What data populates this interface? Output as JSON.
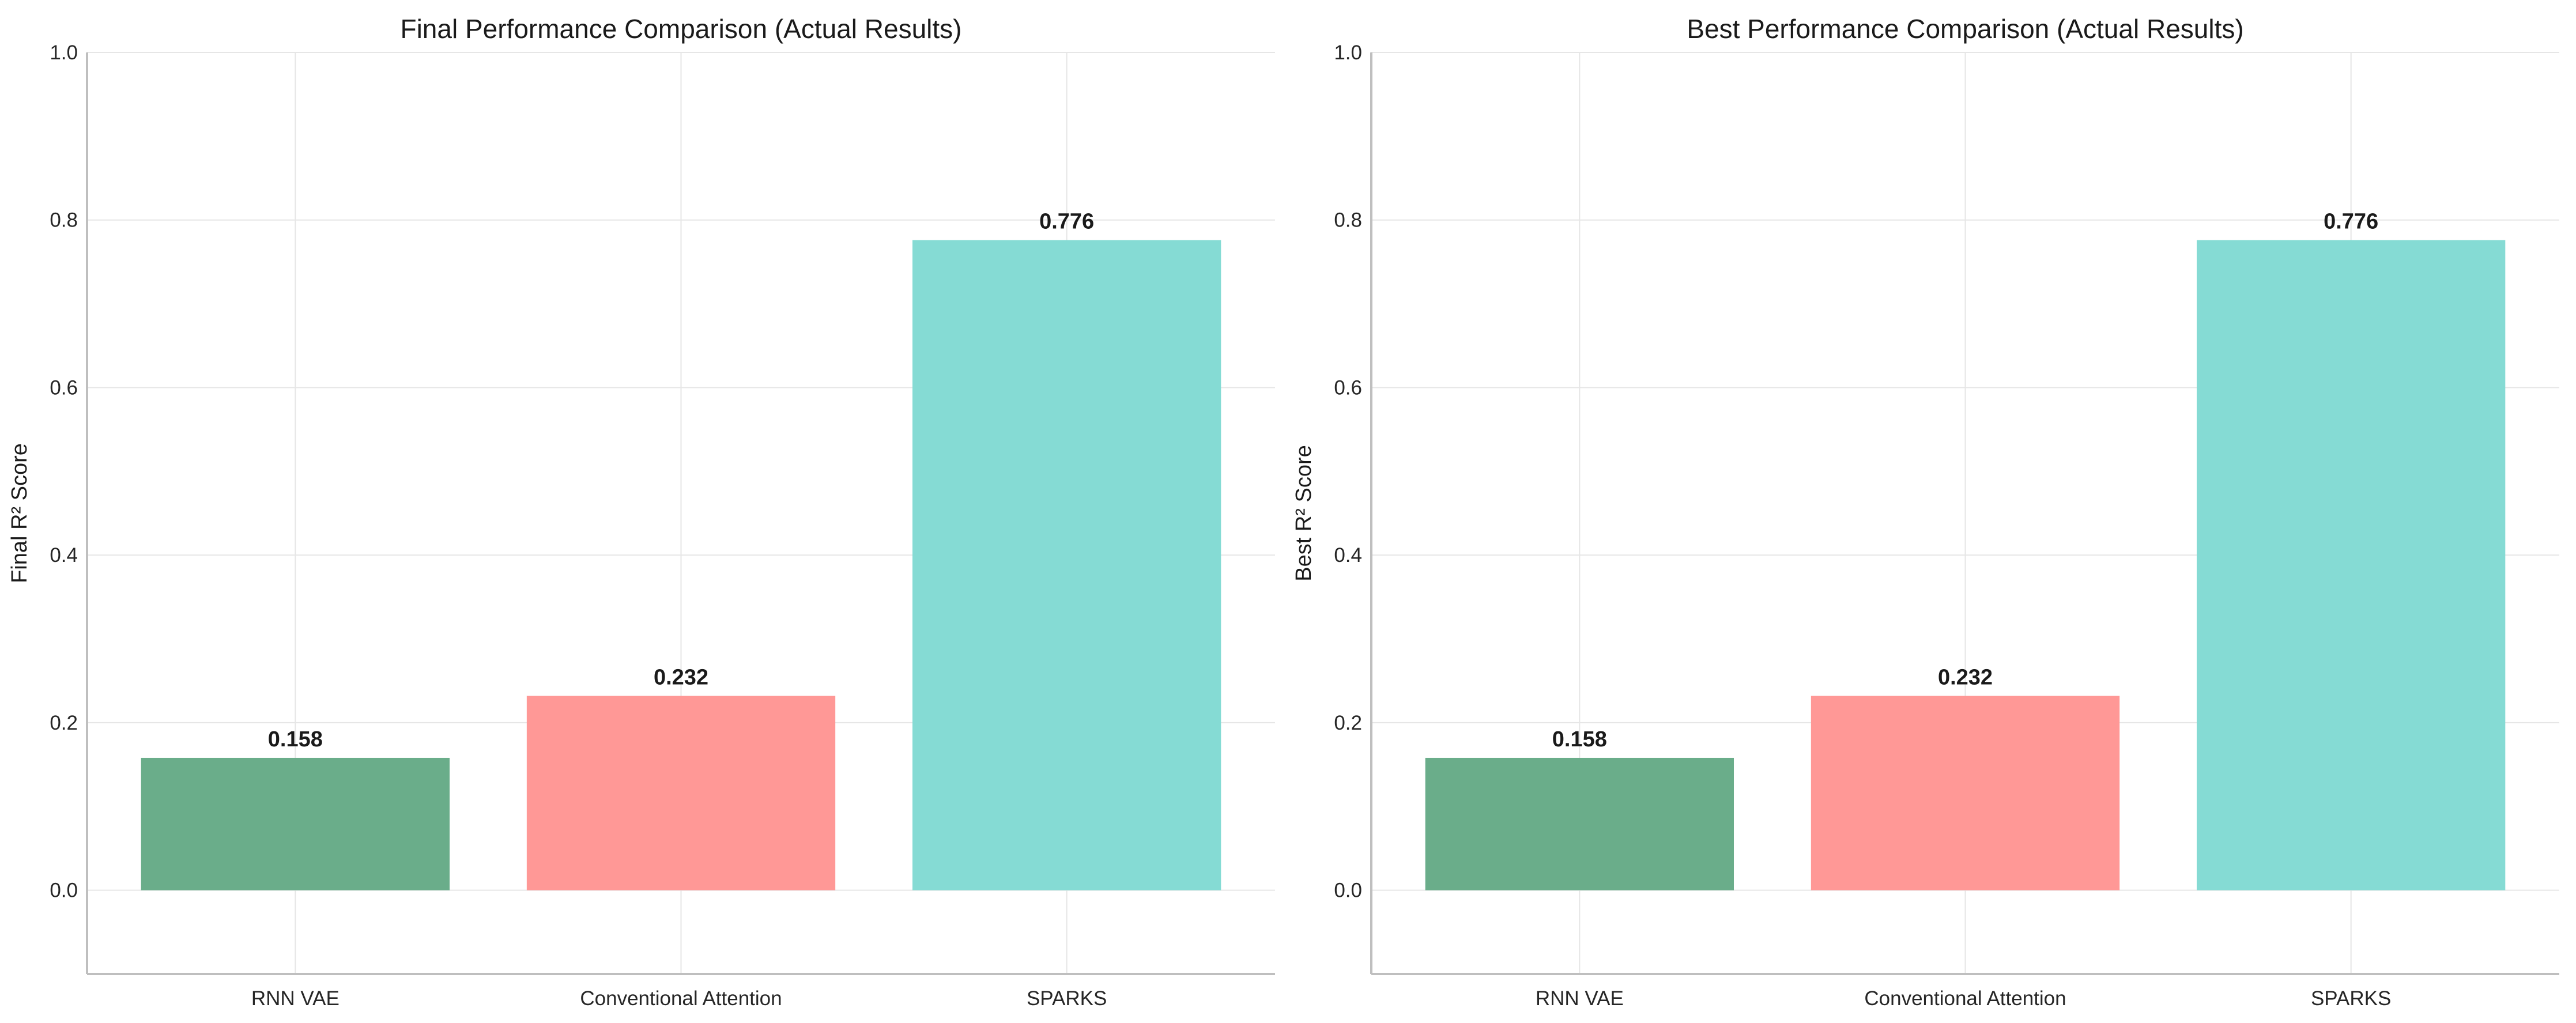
{
  "chart_data": [
    {
      "type": "bar",
      "title": "Final Performance Comparison (Actual Results)",
      "xlabel": "",
      "ylabel": "Final R² Score",
      "categories": [
        "RNN VAE",
        "Conventional Attention",
        "SPARKS"
      ],
      "values": [
        0.158,
        0.232,
        0.776
      ],
      "value_labels": [
        "0.158",
        "0.232",
        "0.776"
      ],
      "colors": [
        "#6aad8a",
        "#ff9896",
        "#85dbd4"
      ],
      "ylim": [
        -0.1,
        1.0
      ],
      "yticks": [
        0.0,
        0.2,
        0.4,
        0.6,
        0.8,
        1.0
      ],
      "ytick_labels": [
        "0.0",
        "0.2",
        "0.4",
        "0.6",
        "0.8",
        "1.0"
      ],
      "grid": true,
      "legend": "none"
    },
    {
      "type": "bar",
      "title": "Best Performance Comparison (Actual Results)",
      "xlabel": "",
      "ylabel": "Best R² Score",
      "categories": [
        "RNN VAE",
        "Conventional Attention",
        "SPARKS"
      ],
      "values": [
        0.158,
        0.232,
        0.776
      ],
      "value_labels": [
        "0.158",
        "0.232",
        "0.776"
      ],
      "colors": [
        "#6aad8a",
        "#ff9896",
        "#85dbd4"
      ],
      "ylim": [
        -0.1,
        1.0
      ],
      "yticks": [
        0.0,
        0.2,
        0.4,
        0.6,
        0.8,
        1.0
      ],
      "ytick_labels": [
        "0.0",
        "0.2",
        "0.4",
        "0.6",
        "0.8",
        "1.0"
      ],
      "grid": true,
      "legend": "none"
    }
  ]
}
